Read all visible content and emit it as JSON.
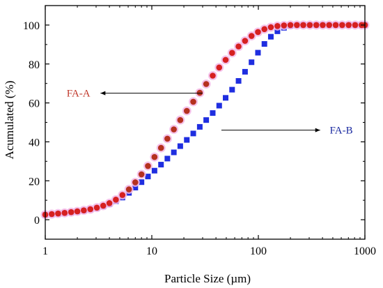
{
  "chart_data": {
    "type": "scatter",
    "xlabel": "Particle Size (µm)",
    "ylabel": "Acumulated (%)",
    "xscale": "log",
    "xlim": [
      1,
      1000
    ],
    "ylim": [
      -10,
      110
    ],
    "xticks": [
      1,
      10,
      100,
      1000
    ],
    "xtick_labels": [
      "1",
      "10",
      "100",
      "1000"
    ],
    "yticks": [
      0,
      20,
      40,
      60,
      80,
      100
    ],
    "ytick_labels": [
      "0",
      "20",
      "40",
      "60",
      "80",
      "100"
    ],
    "grid": false,
    "legend": "none",
    "annotations": [
      {
        "text": "FA-A",
        "color": "#c0392b",
        "arrow": "left",
        "x": 15,
        "y": 65
      },
      {
        "text": "FA-B",
        "color": "#1a2aa0",
        "arrow": "right",
        "x": 45,
        "y": 46
      }
    ],
    "series": [
      {
        "name": "FA-A",
        "marker": "circle",
        "color": "#d62020",
        "x": [
          1.0,
          1.15,
          1.32,
          1.52,
          1.75,
          2.0,
          2.3,
          2.65,
          3.05,
          3.5,
          4.0,
          4.6,
          5.3,
          6.1,
          7.0,
          8.0,
          9.2,
          10.6,
          12.2,
          14.0,
          16.1,
          18.5,
          21.3,
          24.5,
          28.2,
          32.4,
          37.3,
          42.9,
          49.3,
          56.7,
          65.2,
          75.0,
          86.3,
          99.2,
          114,
          131,
          151,
          174,
          200,
          230,
          264,
          304,
          350,
          402,
          462,
          532,
          612,
          704,
          810,
          931,
          1000
        ],
        "y": [
          2.6,
          2.9,
          3.2,
          3.5,
          3.9,
          4.3,
          4.8,
          5.4,
          6.2,
          7.2,
          8.5,
          10.3,
          12.7,
          15.6,
          19.2,
          23.3,
          27.6,
          32.2,
          36.9,
          41.6,
          46.4,
          51.2,
          55.9,
          60.6,
          65.2,
          69.7,
          74.0,
          78.2,
          82.1,
          85.7,
          89.0,
          91.9,
          94.4,
          96.4,
          97.9,
          98.9,
          99.5,
          99.8,
          100,
          100,
          100,
          100,
          100,
          100,
          100,
          100,
          100,
          100,
          100,
          100,
          100
        ]
      },
      {
        "name": "FA-B",
        "marker": "square",
        "color": "#1f2ee0",
        "x": [
          1.0,
          1.15,
          1.32,
          1.52,
          1.75,
          2.0,
          2.3,
          2.65,
          3.05,
          3.5,
          4.0,
          4.6,
          5.3,
          6.1,
          7.0,
          8.0,
          9.2,
          10.6,
          12.2,
          14.0,
          16.1,
          18.5,
          21.3,
          24.5,
          28.2,
          32.4,
          37.3,
          42.9,
          49.3,
          56.7,
          65.2,
          75.0,
          86.3,
          99.2,
          114,
          131,
          151,
          174,
          200,
          230,
          264,
          304,
          350,
          402,
          462,
          532,
          612,
          704,
          810,
          931,
          1000
        ],
        "y": [
          2.5,
          2.8,
          3.1,
          3.4,
          3.8,
          4.2,
          4.7,
          5.3,
          6.0,
          6.9,
          8.0,
          9.5,
          11.4,
          13.8,
          16.5,
          19.3,
          22.2,
          25.2,
          28.3,
          31.4,
          34.6,
          37.8,
          41.0,
          44.3,
          47.7,
          51.2,
          54.8,
          58.6,
          62.6,
          66.8,
          71.3,
          76.0,
          80.9,
          85.8,
          90.3,
          94.0,
          96.8,
          98.6,
          99.6,
          100,
          100,
          100,
          100,
          100,
          100,
          100,
          100,
          100,
          100,
          100,
          100
        ]
      }
    ]
  }
}
